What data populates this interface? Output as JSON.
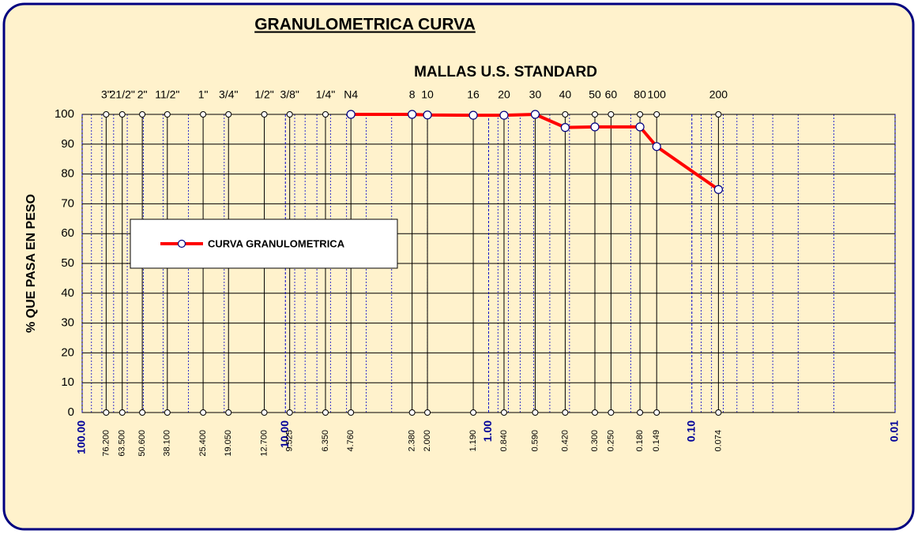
{
  "chart_data": {
    "type": "line",
    "title": "GRANULOMETRICA CURVA",
    "subtitle": "MALLAS U.S. STANDARD",
    "y_label": "% QUE PASA EN PESO",
    "x_scale": "log",
    "x_reversed": true,
    "xlim": [
      100,
      0.01
    ],
    "xticks": [
      {
        "value": 100,
        "label": "100.00"
      },
      {
        "value": 10,
        "label": "10.00"
      },
      {
        "value": 1,
        "label": "1.00"
      },
      {
        "value": 0.1,
        "label": "0.10"
      },
      {
        "value": 0.01,
        "label": "0.01"
      }
    ],
    "ylim": [
      0,
      100
    ],
    "yticks": [
      0,
      10,
      20,
      30,
      40,
      50,
      60,
      70,
      80,
      90,
      100
    ],
    "grid": true,
    "sieves": [
      "3\"",
      "21/2\"",
      "2\"",
      "11/2\"",
      "1\"",
      "3/4\"",
      "1/2\"",
      "3/8\"",
      "1/4\"",
      "N4",
      "8",
      "10",
      "16",
      "20",
      "30",
      "40",
      "50",
      "60",
      "80",
      "100",
      "200"
    ],
    "openings": [
      {
        "value": 76.2,
        "label": "76.200"
      },
      {
        "value": 63.5,
        "label": "63.500"
      },
      {
        "value": 50.6,
        "label": "50.600"
      },
      {
        "value": 38.1,
        "label": "38.100"
      },
      {
        "value": 25.4,
        "label": "25.400"
      },
      {
        "value": 19.05,
        "label": "19.050"
      },
      {
        "value": 12.7,
        "label": "12.700"
      },
      {
        "value": 9.525,
        "label": "9.525"
      },
      {
        "value": 6.35,
        "label": "6.350"
      },
      {
        "value": 4.76,
        "label": "4.760"
      },
      {
        "value": 2.38,
        "label": "2.380"
      },
      {
        "value": 2.0,
        "label": "2.000"
      },
      {
        "value": 1.19,
        "label": "1.190"
      },
      {
        "value": 0.84,
        "label": "0.840"
      },
      {
        "value": 0.59,
        "label": "0.590"
      },
      {
        "value": 0.42,
        "label": "0.420"
      },
      {
        "value": 0.3,
        "label": "0.300"
      },
      {
        "value": 0.25,
        "label": "0.250"
      },
      {
        "value": 0.18,
        "label": "0.180"
      },
      {
        "value": 0.149,
        "label": "0.149"
      },
      {
        "value": 0.074,
        "label": "0.074"
      }
    ],
    "series": [
      {
        "name": "CURVA GRANULOMETRICA",
        "color": "#ff0000",
        "x": [
          4.76,
          2.38,
          2.0,
          1.19,
          0.84,
          0.59,
          0.42,
          0.3,
          0.18,
          0.149,
          0.074
        ],
        "values": [
          100,
          100,
          99.8,
          99.7,
          99.7,
          100,
          95.6,
          95.8,
          95.8,
          89.2,
          74.8
        ]
      }
    ]
  }
}
